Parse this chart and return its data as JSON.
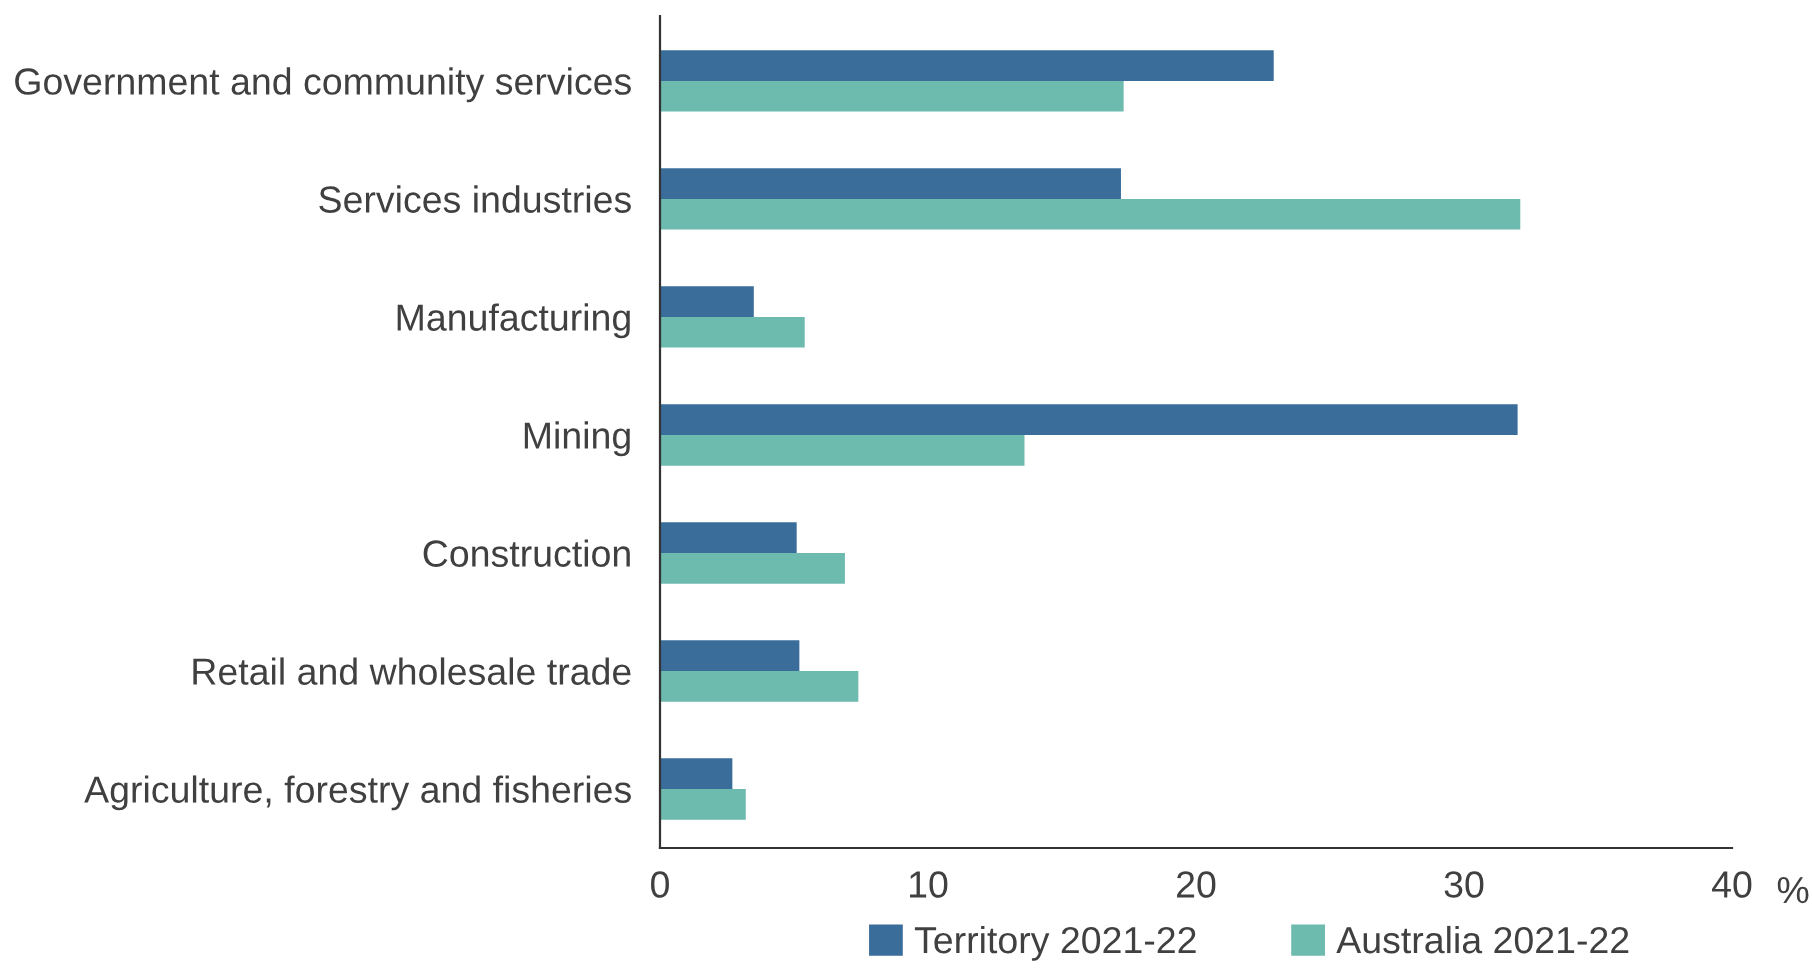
{
  "chart_data": {
    "type": "bar",
    "orientation": "horizontal",
    "xlabel": "%",
    "categories": [
      "Government and community services",
      "Services industries",
      "Manufacturing",
      "Mining",
      "Construction",
      "Retail and wholesale trade",
      "Agriculture, forestry and fisheries"
    ],
    "series": [
      {
        "name": "Territory 2021-22",
        "color": "#3a6d9a",
        "values": [
          22.9,
          17.2,
          3.5,
          32.0,
          5.1,
          5.2,
          2.7
        ]
      },
      {
        "name": "Australia 2021-22",
        "color": "#6dbaae",
        "values": [
          17.3,
          32.1,
          5.4,
          13.6,
          6.9,
          7.4,
          3.2
        ]
      }
    ],
    "xlim": [
      0,
      40
    ],
    "xticks": [
      0,
      10,
      20,
      30,
      40
    ],
    "grid": false,
    "legend": "bottom"
  }
}
